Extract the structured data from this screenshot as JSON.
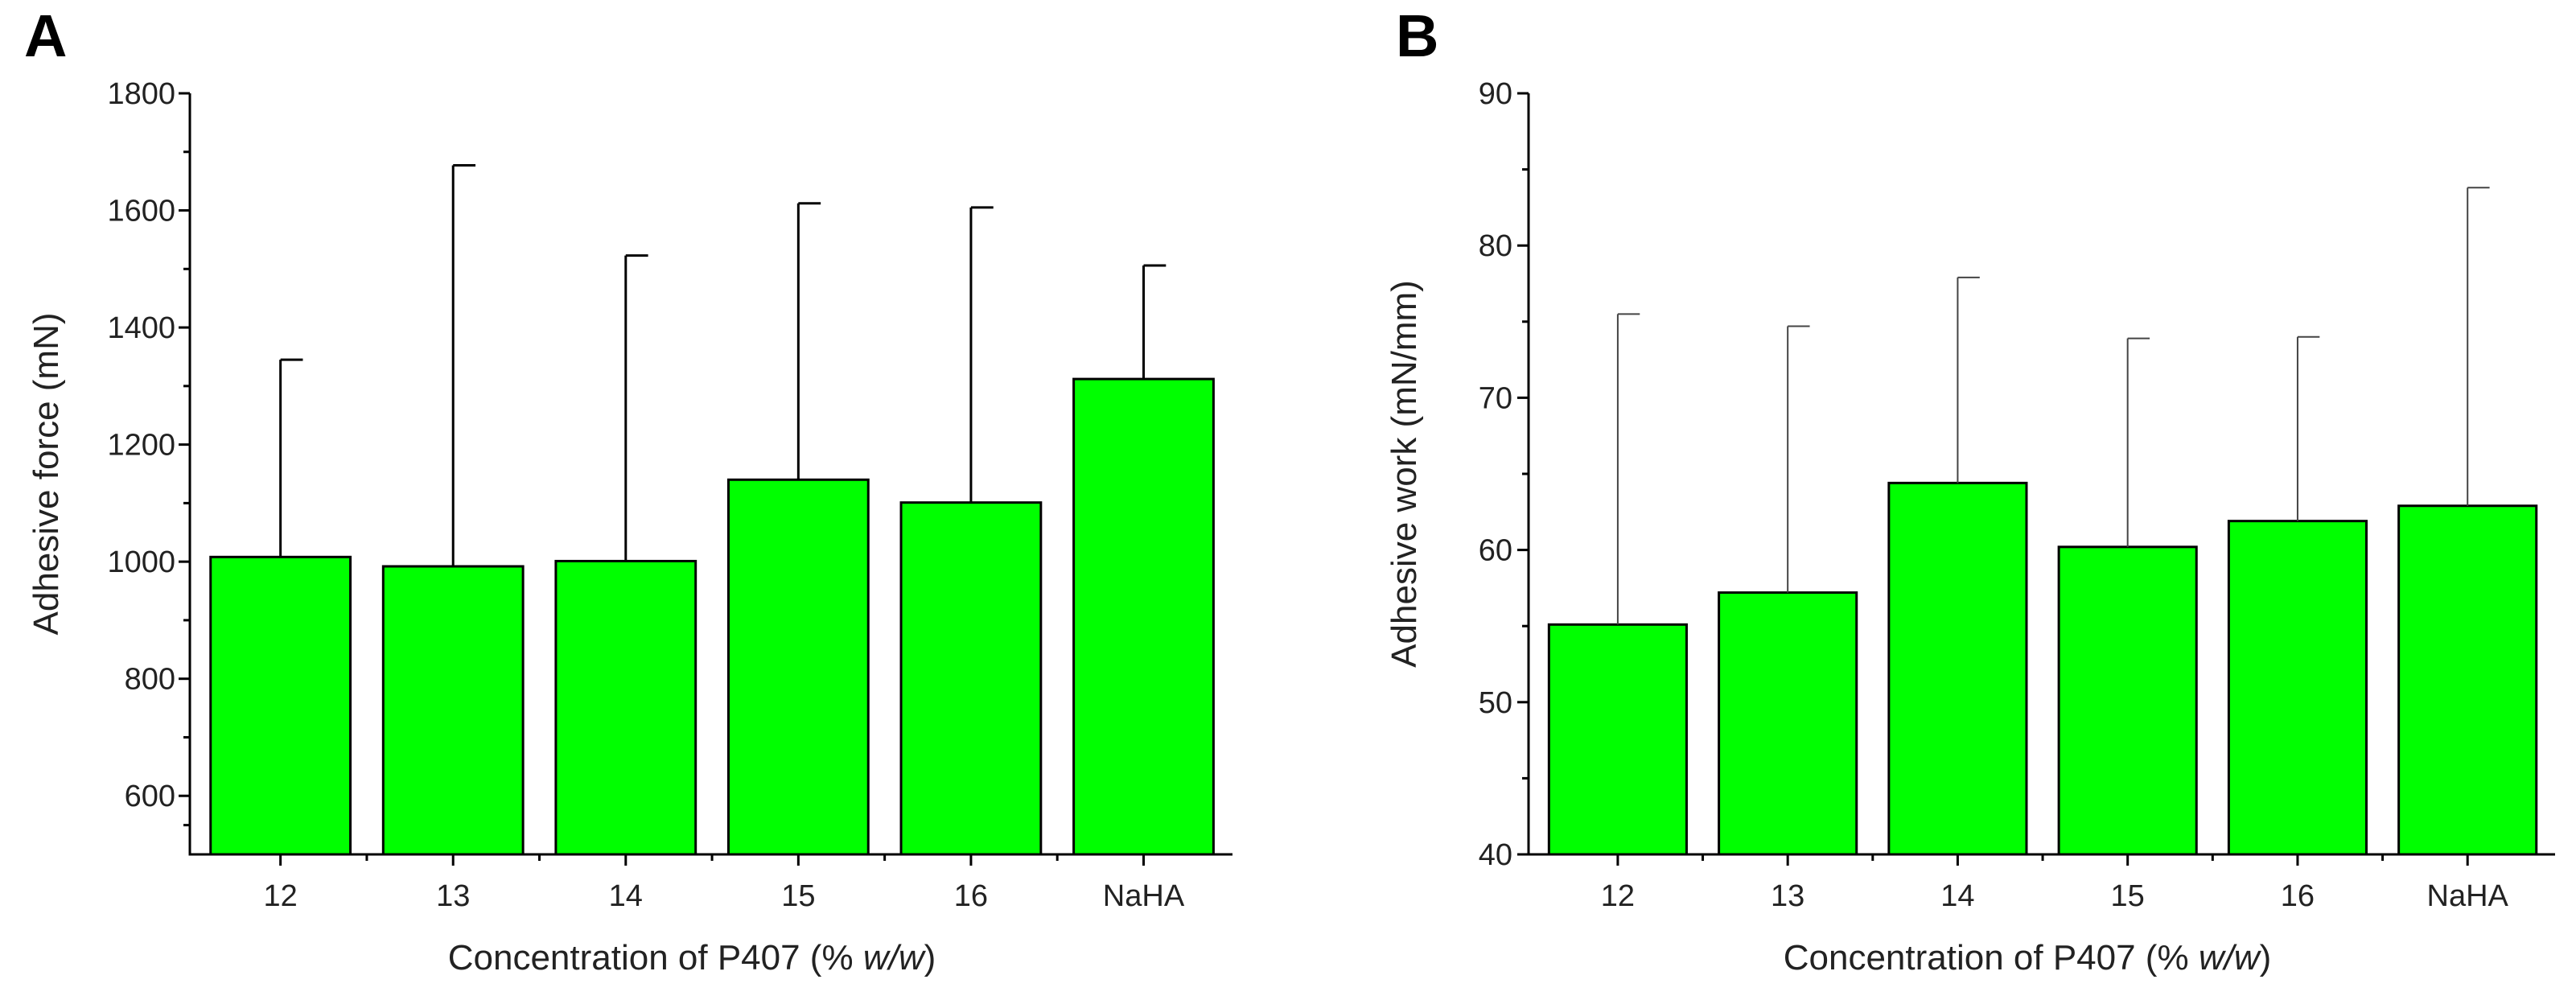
{
  "chart_data": [
    {
      "panel": "A",
      "type": "bar",
      "title": "",
      "xlabel": "Concentration of P407 (% w/w)",
      "xlabel_plain": "Concentration of P407 (% ",
      "xlabel_italic": "w/w",
      "xlabel_close": ")",
      "ylabel": "Adhesive force (mN)",
      "ylim": [
        500,
        1800
      ],
      "yticks": [
        600,
        800,
        1000,
        1200,
        1400,
        1600,
        1800
      ],
      "categories": [
        "12",
        "13",
        "14",
        "15",
        "16",
        "NaHA"
      ],
      "values": [
        1008,
        992,
        1001,
        1140,
        1101,
        1312
      ],
      "errors": [
        337,
        685,
        522,
        472,
        504,
        194
      ],
      "bar_color": "#00ff00"
    },
    {
      "panel": "B",
      "type": "bar",
      "title": "",
      "xlabel": "Concentration of P407 (% w/w)",
      "xlabel_plain": "Concentration of P407 (% ",
      "xlabel_italic": "w/w",
      "xlabel_close": ")",
      "ylabel": "Adhesive work (mN/mm)",
      "ylim": [
        40,
        90
      ],
      "yticks": [
        40,
        50,
        60,
        70,
        80,
        90
      ],
      "categories": [
        "12",
        "13",
        "14",
        "15",
        "16",
        "NaHA"
      ],
      "values": [
        55.1,
        57.2,
        64.4,
        60.2,
        61.9,
        62.9
      ],
      "errors": [
        20.4,
        17.5,
        13.5,
        13.7,
        12.1,
        20.9
      ],
      "bar_color": "#00ff00"
    }
  ]
}
